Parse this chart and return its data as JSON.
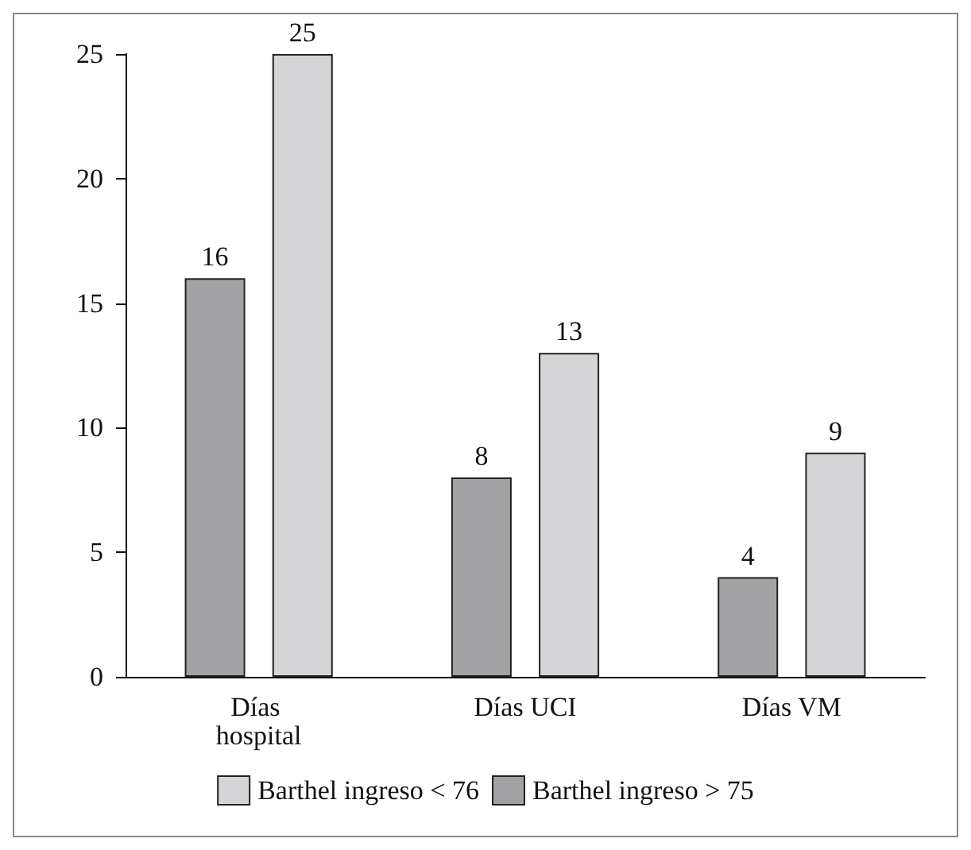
{
  "chart_data": {
    "type": "bar",
    "categories": [
      "Días hospital",
      "Días UCI",
      "Días VM"
    ],
    "series": [
      {
        "name": "Barthel ingreso > 75",
        "color": "#a2a2a4",
        "values": [
          16,
          8,
          4
        ]
      },
      {
        "name": "Barthel ingreso < 76",
        "color": "#d5d5d7",
        "values": [
          25,
          13,
          9
        ]
      }
    ],
    "ylim": [
      0,
      25
    ],
    "yticks": [
      0,
      5,
      10,
      15,
      20,
      25
    ],
    "grid": false,
    "legend": "bottom",
    "data_labels": true
  }
}
